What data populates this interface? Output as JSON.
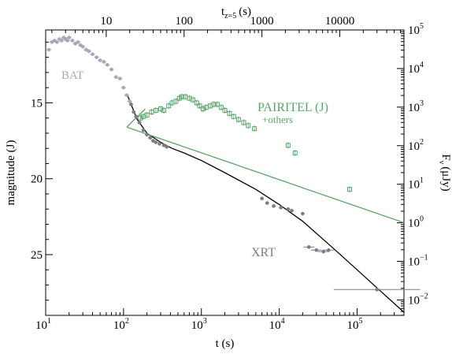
{
  "chart_data": {
    "type": "scatter",
    "xlabel": "t (s)",
    "ylabel_left": "magnitude (J)",
    "ylabel_right": "F",
    "ylabel_right_sub": "ν",
    "ylabel_right_unit": "(μJy)",
    "xlabel_top": "t",
    "xlabel_top_sub": "z=5",
    "xlabel_top_unit": "(s)",
    "xscale": "log",
    "xlim": [
      10,
      400000
    ],
    "ylim_mag": [
      29.0,
      10.2
    ],
    "flux_log_ylim": [
      -2.4,
      5.0
    ],
    "grid": false,
    "x_ticks": [
      {
        "v": 10,
        "b": "10",
        "e": "1"
      },
      {
        "v": 100,
        "b": "10",
        "e": "2"
      },
      {
        "v": 1000,
        "b": "10",
        "e": "3"
      },
      {
        "v": 10000,
        "b": "10",
        "e": "4"
      },
      {
        "v": 100000,
        "b": "10",
        "e": "5"
      }
    ],
    "top_ticks": [
      {
        "v": 10,
        "label": "10"
      },
      {
        "v": 100,
        "label": "100"
      },
      {
        "v": 1000,
        "label": "1000"
      },
      {
        "v": 10000,
        "label": "10000"
      }
    ],
    "mag_ticks": [
      15,
      20,
      25
    ],
    "flux_ticks": [
      {
        "v": 5,
        "label": "10",
        "e": "5"
      },
      {
        "v": 4,
        "label": "10",
        "e": "4"
      },
      {
        "v": 3,
        "label": "10",
        "e": "3"
      },
      {
        "v": 2,
        "label": "10",
        "e": "2"
      },
      {
        "v": 1,
        "label": "10",
        "e": "1"
      },
      {
        "v": 0,
        "label": "10",
        "e": "0"
      },
      {
        "v": -1,
        "label": "10",
        "e": "−1"
      },
      {
        "v": -2,
        "label": "10",
        "e": "−2"
      }
    ],
    "series": [
      {
        "name": "BAT",
        "color": "#a8a8b6",
        "points": [
          [
            11,
            11.5
          ],
          [
            12,
            11.0
          ],
          [
            13,
            10.9
          ],
          [
            14,
            11.0
          ],
          [
            15,
            10.8
          ],
          [
            16,
            10.9
          ],
          [
            17,
            10.7
          ],
          [
            18,
            10.8
          ],
          [
            19,
            10.9
          ],
          [
            20,
            10.7
          ],
          [
            22,
            10.9
          ],
          [
            24,
            11.1
          ],
          [
            26,
            11.0
          ],
          [
            28,
            11.2
          ],
          [
            30,
            11.3
          ],
          [
            33,
            11.5
          ],
          [
            36,
            11.6
          ],
          [
            40,
            11.8
          ],
          [
            45,
            12.0
          ],
          [
            50,
            12.2
          ],
          [
            56,
            12.3
          ],
          [
            62,
            12.5
          ],
          [
            70,
            12.8
          ],
          [
            80,
            13.3
          ],
          [
            90,
            13.4
          ],
          [
            100,
            14.0
          ],
          [
            110,
            14.5
          ],
          [
            120,
            14.9
          ]
        ]
      },
      {
        "name": "PAIRITEL (J)",
        "note": "+others",
        "color": "#5aa56a",
        "points": [
          [
            165,
            16.0
          ],
          [
            180,
            15.9
          ],
          [
            200,
            15.8
          ],
          [
            230,
            15.6
          ],
          [
            260,
            15.5
          ],
          [
            300,
            15.4
          ],
          [
            330,
            15.5
          ],
          [
            380,
            15.2
          ],
          [
            420,
            15.0
          ],
          [
            470,
            14.9
          ],
          [
            520,
            14.7
          ],
          [
            560,
            14.6
          ],
          [
            620,
            14.6
          ],
          [
            700,
            14.7
          ],
          [
            780,
            14.8
          ],
          [
            870,
            15.0
          ],
          [
            950,
            15.2
          ],
          [
            1050,
            15.4
          ],
          [
            1150,
            15.3
          ],
          [
            1300,
            15.2
          ],
          [
            1450,
            15.1
          ],
          [
            1600,
            15.1
          ],
          [
            1800,
            15.3
          ],
          [
            2000,
            15.5
          ],
          [
            2300,
            15.7
          ],
          [
            2600,
            15.9
          ],
          [
            3000,
            16.1
          ],
          [
            3500,
            16.3
          ],
          [
            4000,
            16.5
          ],
          [
            4800,
            16.7
          ],
          [
            13000,
            17.8
          ],
          [
            16000,
            18.3
          ],
          [
            80000,
            20.7
          ]
        ],
        "fit_line": [
          [
            110,
            16.6
          ],
          [
            400000,
            22.9
          ]
        ],
        "early_line": [
          [
            110,
            16.6
          ],
          [
            190,
            15.4
          ]
        ]
      },
      {
        "name": "XRT",
        "color": "#7d7d87",
        "points": [
          [
            125,
            15.1
          ],
          [
            135,
            15.6
          ],
          [
            145,
            15.9
          ],
          [
            160,
            16.3
          ],
          [
            180,
            16.8
          ],
          [
            200,
            17.1
          ],
          [
            220,
            17.3
          ],
          [
            240,
            17.5
          ],
          [
            260,
            17.6
          ],
          [
            290,
            17.7
          ],
          [
            330,
            17.8
          ],
          [
            360,
            17.9
          ],
          [
            6000,
            21.3
          ],
          [
            7000,
            21.6
          ],
          [
            8500,
            21.8
          ],
          [
            10500,
            21.9
          ],
          [
            13000,
            22.0
          ],
          [
            14500,
            22.1
          ],
          [
            20000,
            22.3
          ],
          [
            24000,
            24.5
          ],
          [
            30000,
            24.7
          ],
          [
            37000,
            24.8
          ],
          [
            43000,
            24.7
          ],
          [
            180000,
            27.3
          ]
        ],
        "model_line": [
          [
            110,
            14.4
          ],
          [
            150,
            16.1
          ],
          [
            200,
            17.0
          ],
          [
            300,
            17.6
          ],
          [
            420,
            18.0
          ],
          [
            600,
            18.3
          ],
          [
            1000,
            18.8
          ],
          [
            2000,
            19.6
          ],
          [
            5000,
            20.7
          ],
          [
            10000,
            21.7
          ],
          [
            20000,
            22.8
          ],
          [
            50000,
            24.6
          ],
          [
            100000,
            26.0
          ],
          [
            200000,
            27.4
          ],
          [
            400000,
            28.8
          ]
        ]
      }
    ],
    "annotations": {
      "bat": "BAT",
      "pairitel": "PAIRITEL (J)",
      "pairitel_sub": "+others",
      "xrt": "XRT"
    }
  }
}
